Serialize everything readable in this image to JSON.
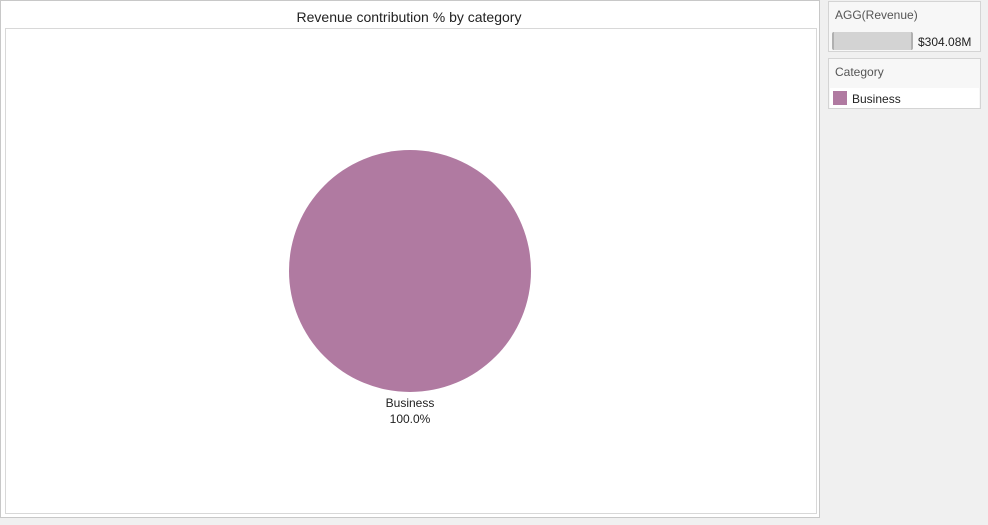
{
  "chart_data": {
    "type": "pie",
    "title": "Revenue contribution % by category",
    "slices": [
      {
        "label": "Business",
        "value": 100.0,
        "percent_label": "100.0%"
      }
    ],
    "colors": [
      "#b07aa1"
    ]
  },
  "size_legend": {
    "title": "AGG(Revenue)",
    "value_label": "$304.08M"
  },
  "color_legend": {
    "title": "Category",
    "items": [
      {
        "label": "Business",
        "color": "#b07aa1"
      }
    ]
  }
}
